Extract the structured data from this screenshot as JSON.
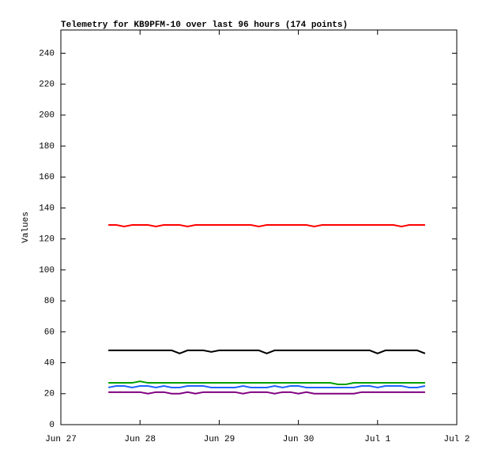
{
  "chart_data": {
    "type": "line",
    "title": "Telemetry for KB9PFM-10 over last 96 hours (174 points)",
    "y_label": "Values",
    "x": [
      0.6,
      0.7,
      0.8,
      0.9,
      1.0,
      1.1,
      1.2,
      1.3,
      1.4,
      1.5,
      1.6,
      1.7,
      1.8,
      1.9,
      2.0,
      2.1,
      2.2,
      2.3,
      2.4,
      2.5,
      2.6,
      2.7,
      2.8,
      2.9,
      3.0,
      3.1,
      3.2,
      3.3,
      3.4,
      3.5,
      3.6,
      3.7,
      3.8,
      3.9,
      4.0,
      4.1,
      4.2,
      4.3,
      4.4,
      4.5,
      4.6
    ],
    "series": [
      {
        "color": "#ff0000",
        "values": [
          129,
          129,
          128,
          129,
          129,
          129,
          128,
          129,
          129,
          129,
          128,
          129,
          129,
          129,
          129,
          129,
          129,
          129,
          129,
          128,
          129,
          129,
          129,
          129,
          129,
          129,
          128,
          129,
          129,
          129,
          129,
          129,
          129,
          129,
          129,
          129,
          129,
          128,
          129,
          129,
          129
        ]
      },
      {
        "color": "#000000",
        "values": [
          48,
          48,
          48,
          48,
          48,
          48,
          48,
          48,
          48,
          46,
          48,
          48,
          48,
          47,
          48,
          48,
          48,
          48,
          48,
          48,
          46,
          48,
          48,
          48,
          48,
          48,
          48,
          48,
          48,
          48,
          48,
          48,
          48,
          48,
          46,
          48,
          48,
          48,
          48,
          48,
          46
        ]
      },
      {
        "color": "#00a000",
        "values": [
          27,
          27,
          27,
          27,
          28,
          27,
          27,
          27,
          27,
          27,
          27,
          27,
          27,
          27,
          27,
          27,
          27,
          27,
          27,
          27,
          27,
          27,
          27,
          27,
          27,
          27,
          27,
          27,
          27,
          26,
          26,
          27,
          27,
          27,
          27,
          27,
          27,
          27,
          27,
          27,
          27
        ]
      },
      {
        "color": "#1e64ff",
        "values": [
          24,
          25,
          25,
          24,
          25,
          25,
          24,
          25,
          24,
          24,
          25,
          25,
          25,
          24,
          24,
          24,
          24,
          25,
          24,
          24,
          24,
          25,
          24,
          25,
          25,
          24,
          24,
          24,
          24,
          24,
          24,
          24,
          25,
          25,
          24,
          25,
          25,
          25,
          24,
          24,
          25
        ]
      },
      {
        "color": "#800080",
        "values": [
          21,
          21,
          21,
          21,
          21,
          20,
          21,
          21,
          20,
          20,
          21,
          20,
          21,
          21,
          21,
          21,
          21,
          20,
          21,
          21,
          21,
          20,
          21,
          21,
          20,
          21,
          20,
          20,
          20,
          20,
          20,
          20,
          21,
          21,
          21,
          21,
          21,
          21,
          21,
          21,
          21
        ]
      }
    ],
    "xlim": [
      0,
      5
    ],
    "xticks": [
      {
        "value": 0,
        "label": "Jun 27"
      },
      {
        "value": 1,
        "label": "Jun 28"
      },
      {
        "value": 2,
        "label": "Jun 29"
      },
      {
        "value": 3,
        "label": "Jun 30"
      },
      {
        "value": 4,
        "label": "Jul 1"
      },
      {
        "value": 5,
        "label": "Jul 2"
      }
    ],
    "ylim": [
      0,
      255
    ],
    "yticks": [
      0,
      20,
      40,
      60,
      80,
      100,
      120,
      140,
      160,
      180,
      200,
      220,
      240
    ]
  }
}
